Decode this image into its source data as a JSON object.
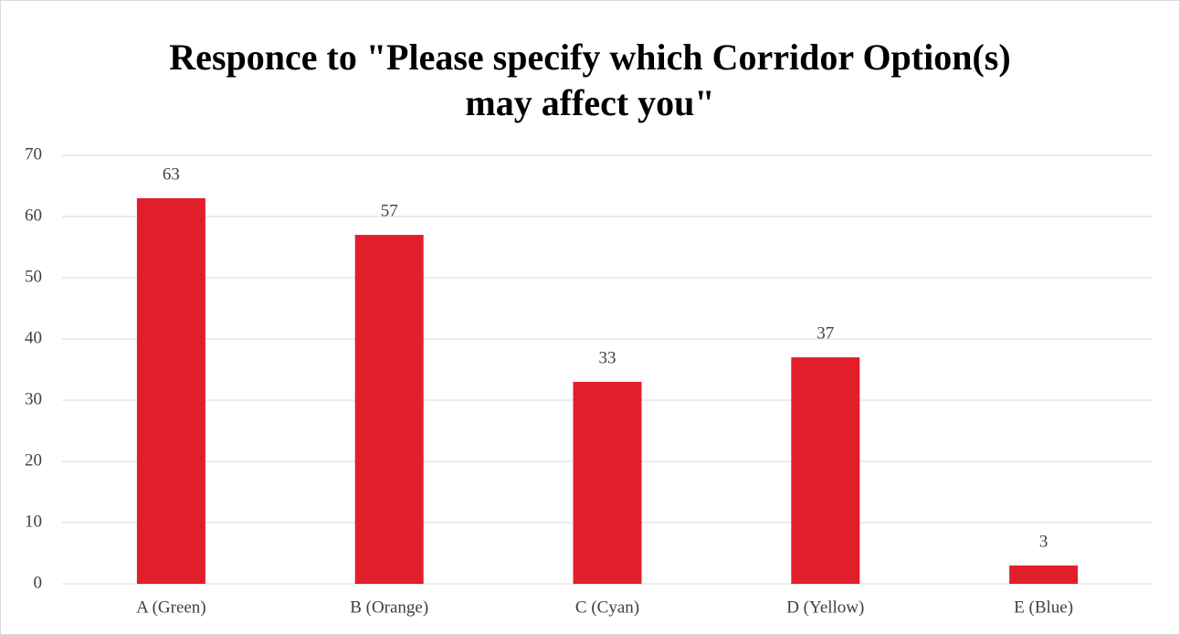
{
  "chart_data": {
    "type": "bar",
    "title": "Responce to \"Please specify which Corridor Option(s) may affect you\"",
    "categories": [
      "A (Green)",
      "B (Orange)",
      "C (Cyan)",
      "D (Yellow)",
      "E (Blue)"
    ],
    "values": [
      63,
      57,
      33,
      37,
      3
    ],
    "color": "#e31e2b",
    "ylim": [
      0,
      70
    ],
    "yticks": [
      0,
      10,
      20,
      30,
      40,
      50,
      60,
      70
    ],
    "grid": true
  }
}
